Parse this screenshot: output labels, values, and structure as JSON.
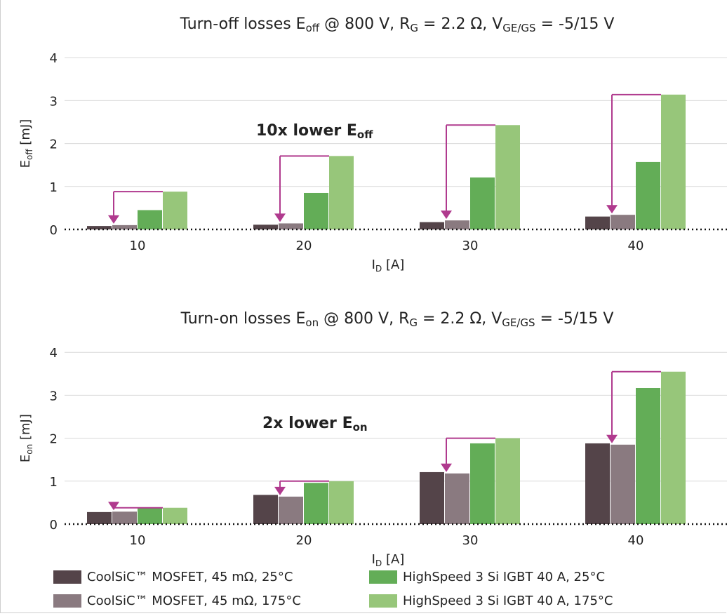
{
  "colors": {
    "mosfet_25": "#544449",
    "mosfet_175": "#8a7a80",
    "igbt_25": "#63ad57",
    "igbt_175": "#97c67a",
    "annotation": "#b03a8e",
    "grid": "#d9d9d9"
  },
  "legend": {
    "items": [
      {
        "label": "CoolSiC™ MOSFET, 45 mΩ, 25°C",
        "color": "#544449"
      },
      {
        "label": "CoolSiC™ MOSFET, 45 mΩ, 175°C",
        "color": "#8a7a80"
      },
      {
        "label": "HighSpeed 3 Si IGBT 40 A, 25°C",
        "color": "#63ad57"
      },
      {
        "label": "HighSpeed 3 Si IGBT 40 A, 175°C",
        "color": "#97c67a"
      }
    ]
  },
  "chart_data": [
    {
      "type": "bar",
      "title": {
        "main": "Turn-off losses E",
        "main_sub": "off",
        "rest": " @ 800 V, R",
        "rg_sub": "G",
        "rg_rest": " = 2.2 Ω, V",
        "v_sub": "GE/GS",
        "v_rest": " = -5/15 V"
      },
      "xlabel": {
        "main": "I",
        "sub": "D",
        "rest": " [A]"
      },
      "ylabel": {
        "main": "E",
        "sub": "off",
        "rest": " [mJ]"
      },
      "annotation": {
        "main": "10x lower E",
        "sub": "off"
      },
      "categories": [
        "10",
        "20",
        "30",
        "40"
      ],
      "yticks": [
        "0",
        "1",
        "2",
        "3",
        "4"
      ],
      "ylim": [
        0,
        4
      ],
      "series": [
        {
          "name": "CoolSiC™ MOSFET, 45 mΩ, 25°C",
          "values": [
            0.08,
            0.11,
            0.17,
            0.3
          ]
        },
        {
          "name": "CoolSiC™ MOSFET, 45 mΩ, 175°C",
          "values": [
            0.1,
            0.14,
            0.21,
            0.34
          ]
        },
        {
          "name": "HighSpeed 3 Si IGBT 40 A, 25°C",
          "values": [
            0.45,
            0.85,
            1.21,
            1.57
          ]
        },
        {
          "name": "HighSpeed 3 Si IGBT 40 A, 175°C",
          "values": [
            0.88,
            1.71,
            2.43,
            3.14
          ]
        }
      ]
    },
    {
      "type": "bar",
      "title": {
        "main": "Turn-on losses E",
        "main_sub": "on",
        "rest": " @ 800 V, R",
        "rg_sub": "G",
        "rg_rest": " = 2.2 Ω, V",
        "v_sub": "GE/GS",
        "v_rest": " = -5/15 V"
      },
      "xlabel": {
        "main": "I",
        "sub": "D",
        "rest": " [A]"
      },
      "ylabel": {
        "main": "E",
        "sub": "on",
        "rest": " [mJ]"
      },
      "annotation": {
        "main": "2x lower E",
        "sub": "on"
      },
      "categories": [
        "10",
        "20",
        "30",
        "40"
      ],
      "yticks": [
        "0",
        "1",
        "2",
        "3",
        "4"
      ],
      "ylim": [
        0,
        4
      ],
      "series": [
        {
          "name": "CoolSiC™ MOSFET, 45 mΩ, 25°C",
          "values": [
            0.28,
            0.68,
            1.21,
            1.88
          ]
        },
        {
          "name": "CoolSiC™ MOSFET, 45 mΩ, 175°C",
          "values": [
            0.29,
            0.64,
            1.18,
            1.85
          ]
        },
        {
          "name": "HighSpeed 3 Si IGBT 40 A, 25°C",
          "values": [
            0.37,
            0.96,
            1.88,
            3.17
          ]
        },
        {
          "name": "HighSpeed 3 Si IGBT 40 A, 175°C",
          "values": [
            0.38,
            1.0,
            2.0,
            3.55
          ]
        }
      ]
    }
  ]
}
